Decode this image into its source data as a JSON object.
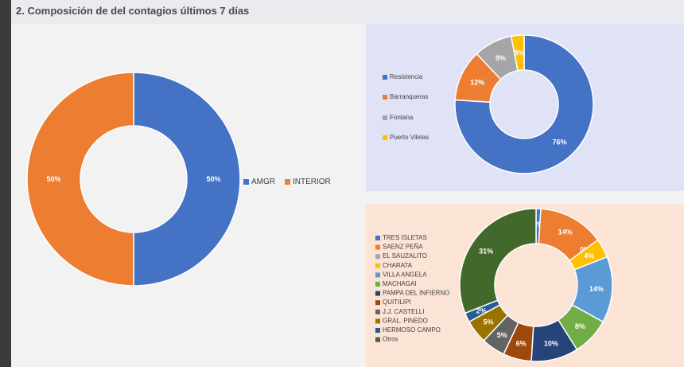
{
  "header": {
    "title": "2. Composición de del contagios últimos 7 días"
  },
  "chart_data": [
    {
      "type": "pie",
      "donut": true,
      "title": "",
      "categories": [
        "AMGR",
        "INTERIOR"
      ],
      "values": [
        50,
        50
      ],
      "labels": [
        "50%",
        "50%"
      ],
      "colors": [
        "#4472c4",
        "#ed7d31"
      ],
      "legend": "right"
    },
    {
      "type": "pie",
      "donut": true,
      "title": "",
      "categories": [
        "Resistencia",
        "Barranqueras",
        "Fontana",
        "Puerto Vilelas"
      ],
      "values": [
        76,
        12,
        9,
        3
      ],
      "labels": [
        "76%",
        "12%",
        "9%",
        "3%"
      ],
      "colors": [
        "#4472c4",
        "#ed7d31",
        "#a5a5a5",
        "#ffc000"
      ],
      "legend": "left"
    },
    {
      "type": "pie",
      "donut": true,
      "title": "",
      "categories": [
        "TRES ISLETAS",
        "SAENZ PEÑA",
        "EL SAUZALITO",
        "CHARATA",
        "VILLA ANGELA",
        "MACHAGAI",
        "PAMPA DEL INFIERNO",
        "QUITILIPI",
        "J.J. CASTELLI",
        "GRAL. PINEDO",
        "HERMOSO CAMPO",
        "Otros"
      ],
      "values": [
        1,
        14,
        0,
        4,
        14,
        8,
        10,
        6,
        5,
        5,
        2,
        31
      ],
      "labels": [
        "1%",
        "14%",
        "0%",
        "4%",
        "14%",
        "8%",
        "10%",
        "6%",
        "5%",
        "5%",
        "2%",
        "31%"
      ],
      "colors": [
        "#4472c4",
        "#ed7d31",
        "#a5a5a5",
        "#ffc000",
        "#5b9bd5",
        "#70ad47",
        "#264478",
        "#9e480e",
        "#636363",
        "#997300",
        "#255e91",
        "#43682b"
      ],
      "legend": "left"
    }
  ]
}
